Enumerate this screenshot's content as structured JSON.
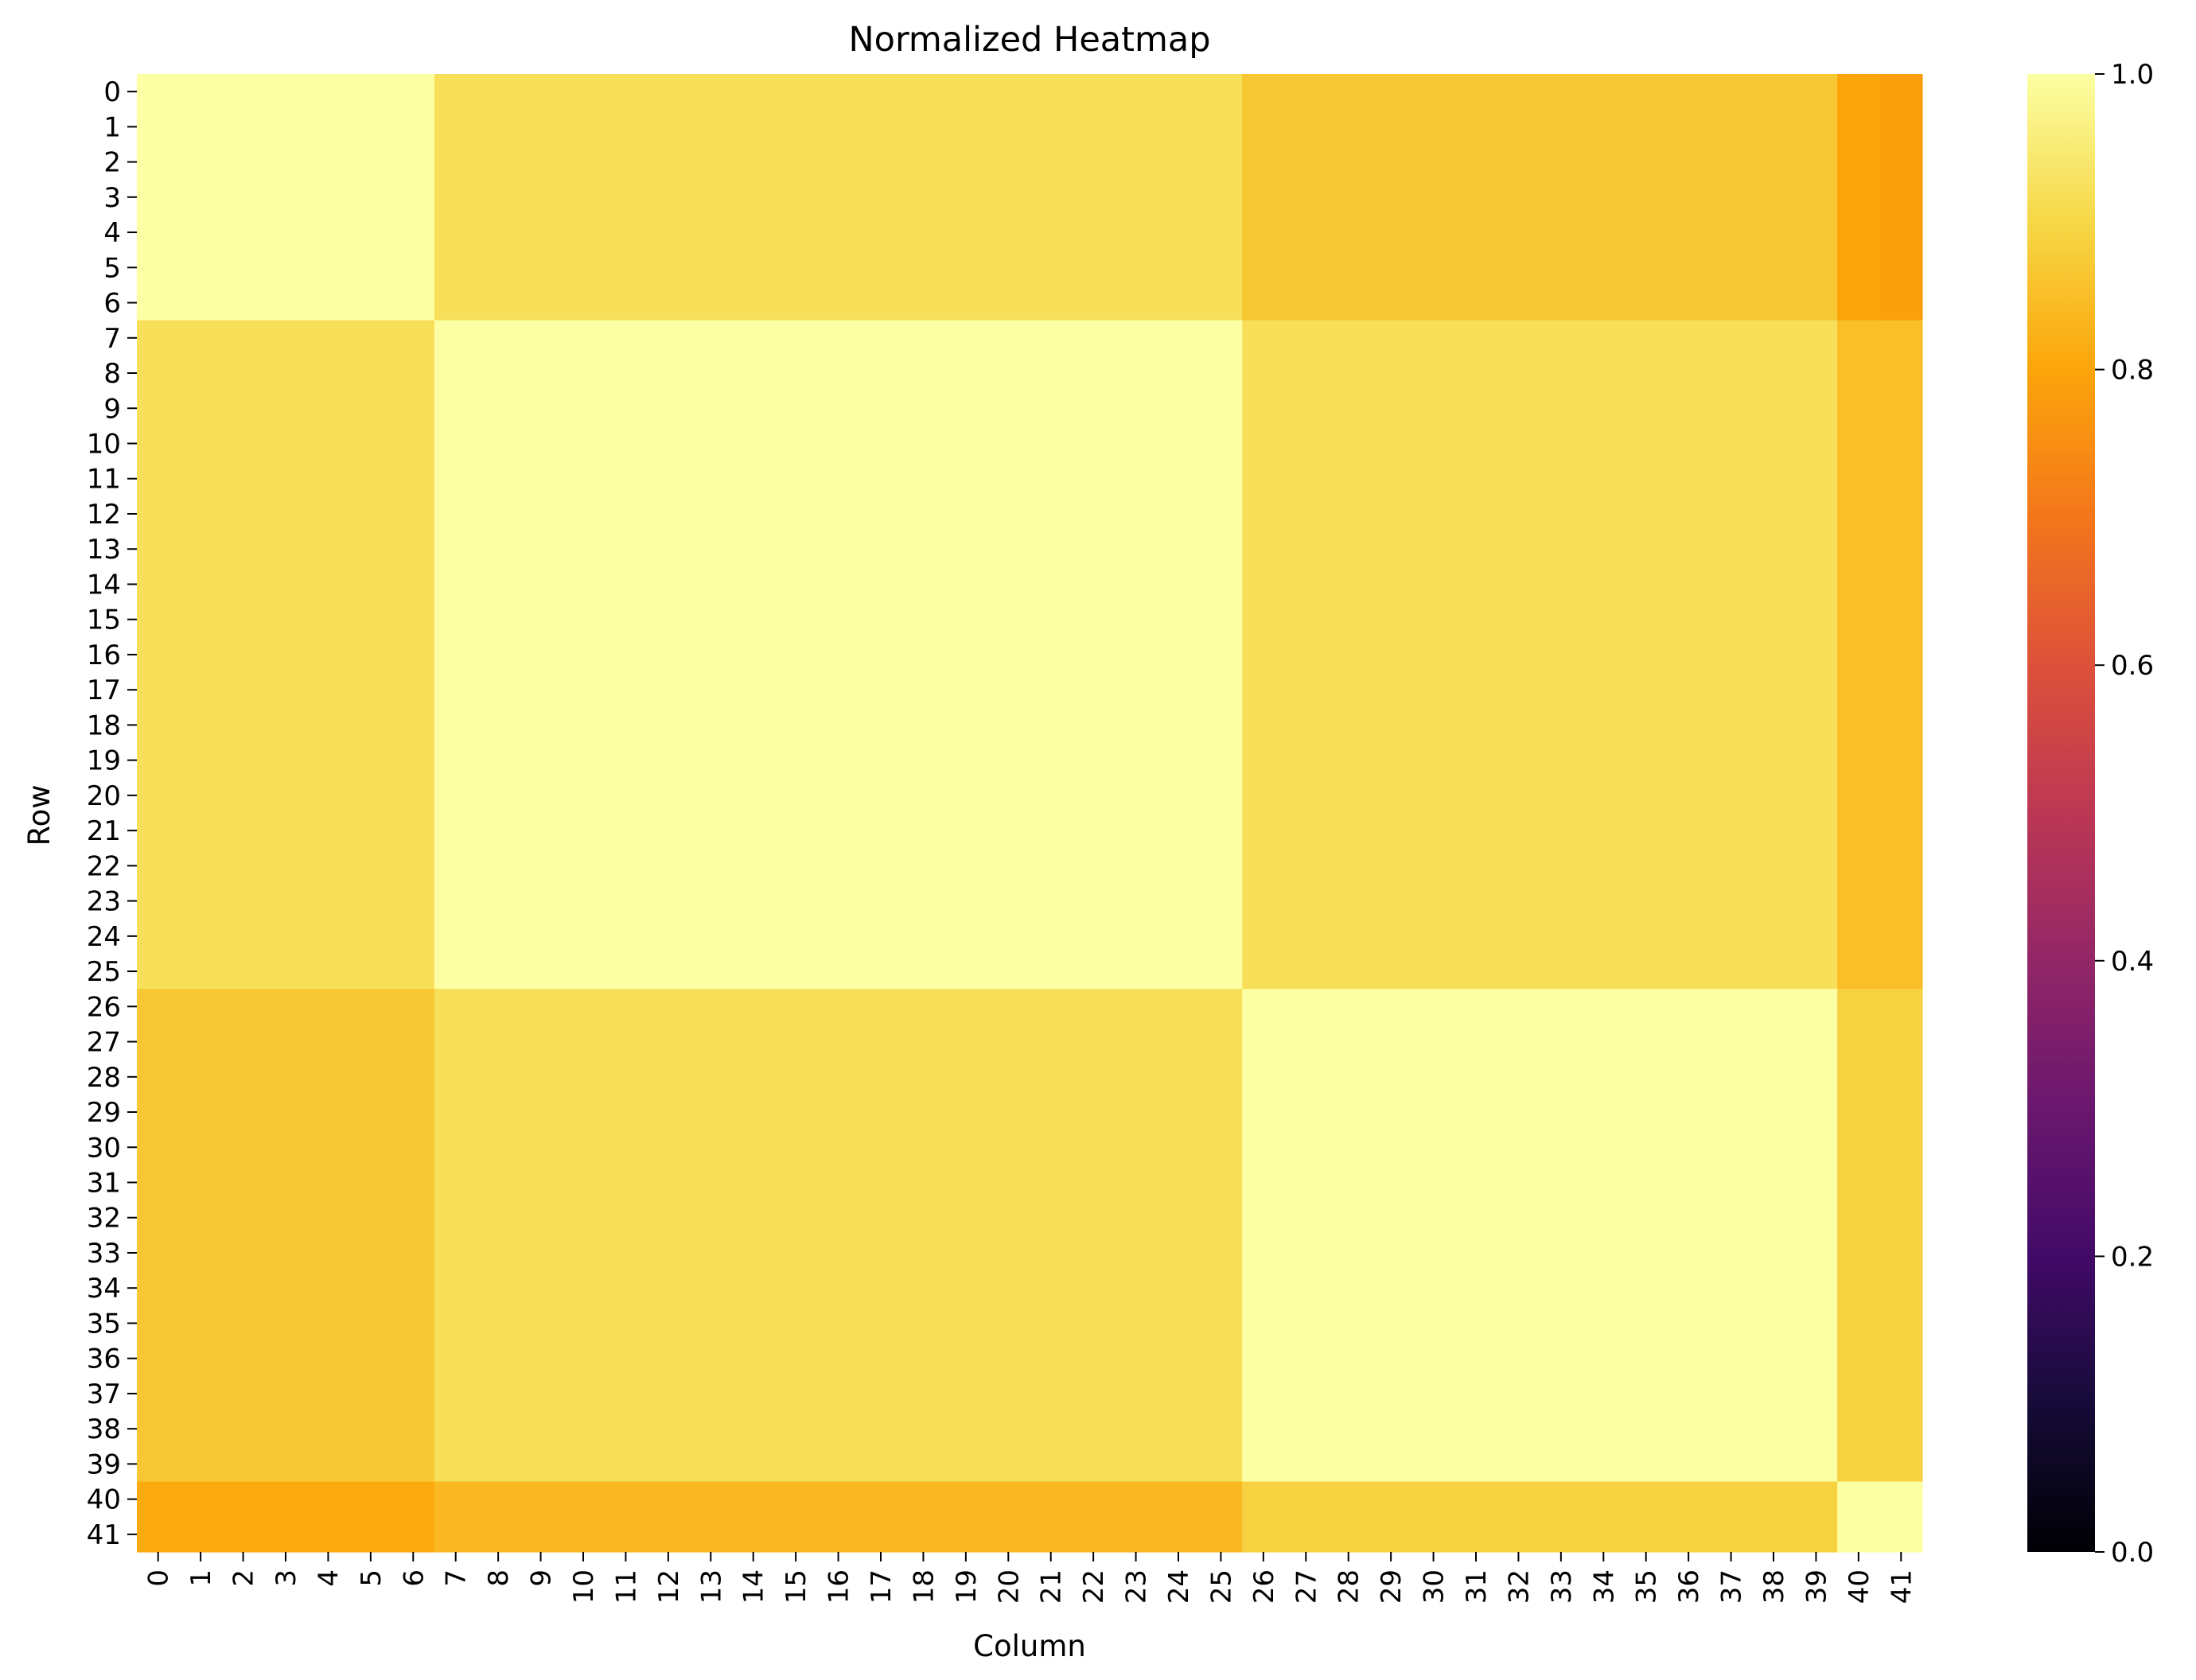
{
  "chart_data": {
    "type": "heatmap",
    "title": "Normalized Heatmap",
    "xlabel": "Column",
    "ylabel": "Row",
    "rows": [
      "0",
      "1",
      "2",
      "3",
      "4",
      "5",
      "6",
      "7",
      "8",
      "9",
      "10",
      "11",
      "12",
      "13",
      "14",
      "15",
      "16",
      "17",
      "18",
      "19",
      "20",
      "21",
      "22",
      "23",
      "24",
      "25",
      "26",
      "27",
      "28",
      "29",
      "30",
      "31",
      "32",
      "33",
      "34",
      "35",
      "36",
      "37",
      "38",
      "39",
      "40",
      "41"
    ],
    "columns": [
      "0",
      "1",
      "2",
      "3",
      "4",
      "5",
      "6",
      "7",
      "8",
      "9",
      "10",
      "11",
      "12",
      "13",
      "14",
      "15",
      "16",
      "17",
      "18",
      "19",
      "20",
      "21",
      "22",
      "23",
      "24",
      "25",
      "26",
      "27",
      "28",
      "29",
      "30",
      "31",
      "32",
      "33",
      "34",
      "35",
      "36",
      "37",
      "38",
      "39",
      "40",
      "41"
    ],
    "colormap": "inferno",
    "colorbar": {
      "range": [
        0.0,
        1.0
      ],
      "ticks": [
        "0.0",
        "0.2",
        "0.4",
        "0.6",
        "0.8",
        "1.0"
      ]
    },
    "blocks": [
      {
        "rows": [
          0,
          6
        ],
        "cols": [
          0,
          6
        ],
        "value": 1.0
      },
      {
        "rows": [
          0,
          6
        ],
        "cols": [
          7,
          25
        ],
        "value": 0.92
      },
      {
        "rows": [
          0,
          6
        ],
        "cols": [
          26,
          39
        ],
        "value": 0.87
      },
      {
        "rows": [
          0,
          6
        ],
        "cols": [
          40,
          40
        ],
        "value": 0.8
      },
      {
        "rows": [
          0,
          6
        ],
        "cols": [
          41,
          41
        ],
        "value": 0.79
      },
      {
        "rows": [
          7,
          25
        ],
        "cols": [
          0,
          6
        ],
        "value": 0.92
      },
      {
        "rows": [
          7,
          25
        ],
        "cols": [
          7,
          25
        ],
        "value": 1.0
      },
      {
        "rows": [
          7,
          25
        ],
        "cols": [
          26,
          39
        ],
        "value": 0.92
      },
      {
        "rows": [
          7,
          25
        ],
        "cols": [
          40,
          40
        ],
        "value": 0.85
      },
      {
        "rows": [
          7,
          25
        ],
        "cols": [
          41,
          41
        ],
        "value": 0.85
      },
      {
        "rows": [
          26,
          39
        ],
        "cols": [
          0,
          6
        ],
        "value": 0.87
      },
      {
        "rows": [
          26,
          39
        ],
        "cols": [
          7,
          25
        ],
        "value": 0.92
      },
      {
        "rows": [
          26,
          39
        ],
        "cols": [
          26,
          39
        ],
        "value": 1.0
      },
      {
        "rows": [
          26,
          39
        ],
        "cols": [
          40,
          40
        ],
        "value": 0.89
      },
      {
        "rows": [
          26,
          39
        ],
        "cols": [
          41,
          41
        ],
        "value": 0.89
      },
      {
        "rows": [
          40,
          41
        ],
        "cols": [
          0,
          6
        ],
        "value": 0.81
      },
      {
        "rows": [
          40,
          41
        ],
        "cols": [
          7,
          25
        ],
        "value": 0.84
      },
      {
        "rows": [
          40,
          41
        ],
        "cols": [
          26,
          39
        ],
        "value": 0.89
      },
      {
        "rows": [
          40,
          41
        ],
        "cols": [
          40,
          41
        ],
        "value": 1.0
      }
    ]
  }
}
